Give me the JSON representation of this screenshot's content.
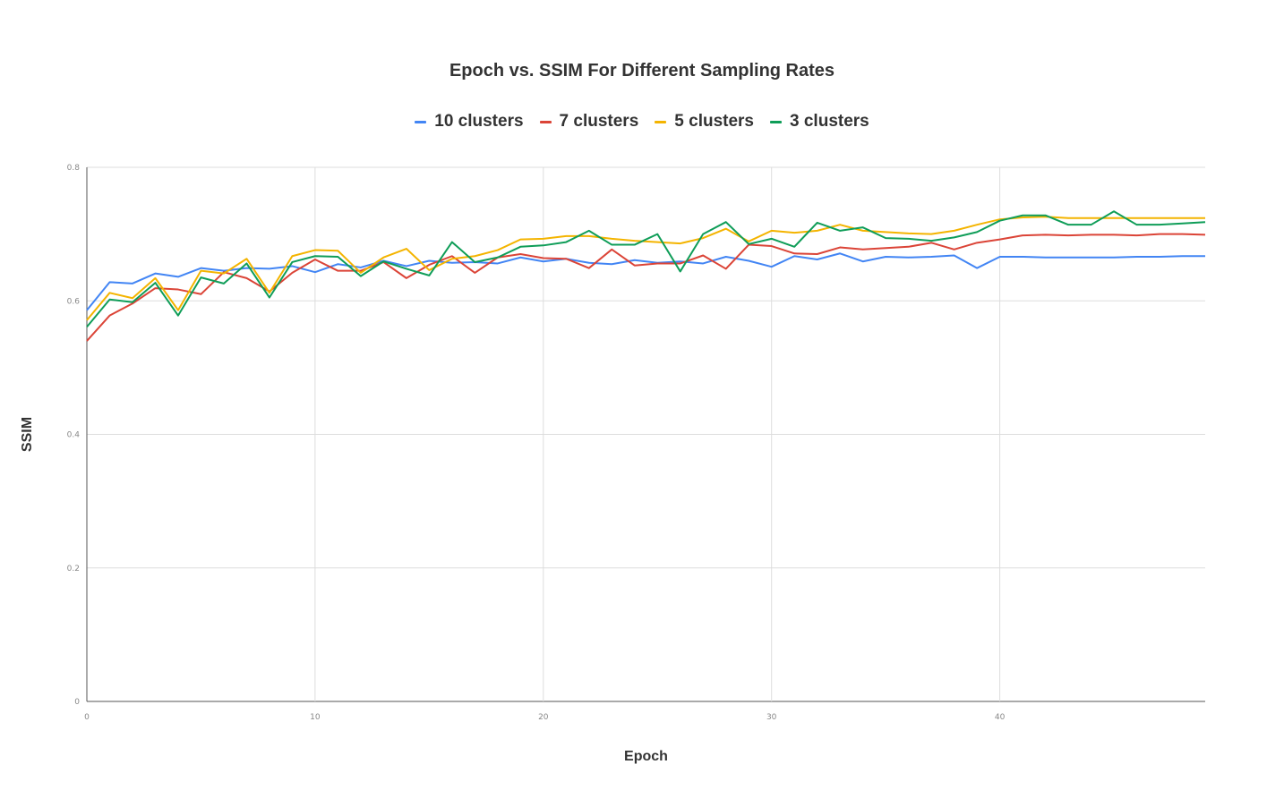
{
  "chart_data": {
    "type": "line",
    "title": "Epoch vs. SSIM For Different Sampling Rates",
    "xlabel": "Epoch",
    "ylabel": "SSIM",
    "xlim": [
      0,
      49
    ],
    "ylim": [
      0,
      0.8
    ],
    "x_ticks": [
      "0",
      "10",
      "20",
      "30",
      "40"
    ],
    "x_tick_values": [
      0,
      10,
      20,
      30,
      40
    ],
    "y_ticks": [
      "0",
      "0.2",
      "0.4",
      "0.6",
      "0.8"
    ],
    "y_tick_values": [
      0,
      0.2,
      0.4,
      0.6,
      0.8
    ],
    "grid": true,
    "legend_position": "top",
    "x": [
      0,
      1,
      2,
      3,
      4,
      5,
      6,
      7,
      8,
      9,
      10,
      11,
      12,
      13,
      14,
      15,
      16,
      17,
      18,
      19,
      20,
      21,
      22,
      23,
      24,
      25,
      26,
      27,
      28,
      29,
      30,
      31,
      32,
      33,
      34,
      35,
      36,
      37,
      38,
      39,
      40,
      41,
      42,
      43,
      44,
      45,
      46,
      47,
      48,
      49
    ],
    "series": [
      {
        "name": "10 clusters",
        "color": "#4285f4",
        "values": [
          0.586,
          0.628,
          0.626,
          0.641,
          0.636,
          0.649,
          0.645,
          0.649,
          0.648,
          0.652,
          0.643,
          0.655,
          0.65,
          0.66,
          0.652,
          0.66,
          0.657,
          0.658,
          0.656,
          0.665,
          0.659,
          0.663,
          0.657,
          0.655,
          0.661,
          0.657,
          0.659,
          0.656,
          0.666,
          0.66,
          0.651,
          0.667,
          0.662,
          0.671,
          0.659,
          0.666,
          0.665,
          0.666,
          0.668,
          0.649,
          0.666,
          0.666,
          0.665,
          0.665,
          0.665,
          0.665,
          0.666,
          0.666,
          0.667,
          0.667
        ]
      },
      {
        "name": "7 clusters",
        "color": "#db4437",
        "values": [
          0.54,
          0.578,
          0.596,
          0.619,
          0.617,
          0.61,
          0.643,
          0.634,
          0.614,
          0.642,
          0.662,
          0.645,
          0.645,
          0.658,
          0.634,
          0.654,
          0.667,
          0.642,
          0.665,
          0.67,
          0.664,
          0.663,
          0.649,
          0.677,
          0.653,
          0.656,
          0.656,
          0.668,
          0.648,
          0.684,
          0.682,
          0.671,
          0.67,
          0.68,
          0.677,
          0.679,
          0.681,
          0.687,
          0.677,
          0.687,
          0.692,
          0.698,
          0.699,
          0.698,
          0.699,
          0.699,
          0.698,
          0.7,
          0.7,
          0.699
        ]
      },
      {
        "name": "5 clusters",
        "color": "#f4b400",
        "values": [
          0.571,
          0.612,
          0.604,
          0.634,
          0.586,
          0.645,
          0.641,
          0.663,
          0.612,
          0.667,
          0.676,
          0.675,
          0.642,
          0.665,
          0.678,
          0.646,
          0.663,
          0.667,
          0.676,
          0.692,
          0.693,
          0.697,
          0.697,
          0.693,
          0.69,
          0.688,
          0.686,
          0.694,
          0.708,
          0.689,
          0.705,
          0.702,
          0.705,
          0.714,
          0.705,
          0.703,
          0.701,
          0.7,
          0.705,
          0.714,
          0.722,
          0.725,
          0.726,
          0.724,
          0.724,
          0.724,
          0.724,
          0.724,
          0.724,
          0.724
        ]
      },
      {
        "name": "3 clusters",
        "color": "#0f9d58",
        "values": [
          0.561,
          0.602,
          0.598,
          0.627,
          0.578,
          0.635,
          0.626,
          0.656,
          0.605,
          0.658,
          0.667,
          0.666,
          0.637,
          0.659,
          0.648,
          0.638,
          0.688,
          0.658,
          0.665,
          0.681,
          0.683,
          0.688,
          0.705,
          0.684,
          0.684,
          0.7,
          0.644,
          0.7,
          0.718,
          0.685,
          0.693,
          0.681,
          0.717,
          0.705,
          0.71,
          0.694,
          0.693,
          0.69,
          0.695,
          0.703,
          0.72,
          0.728,
          0.728,
          0.714,
          0.714,
          0.734,
          0.714,
          0.714,
          0.716,
          0.718
        ]
      }
    ]
  }
}
